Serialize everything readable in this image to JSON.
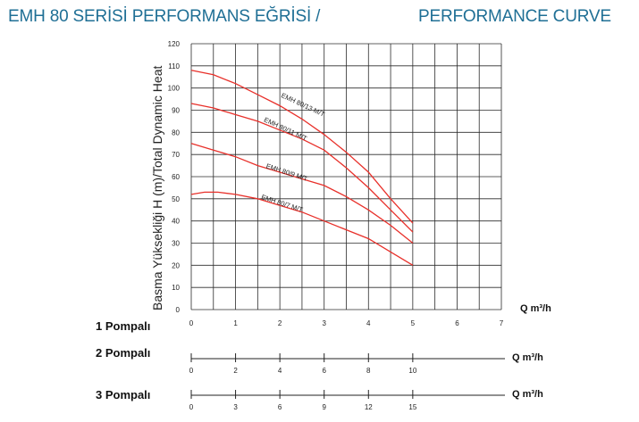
{
  "title_tr": "EMH 80 SERİSİ PERFORMANS EĞRİSİ /",
  "title_en": "PERFORMANCE CURVE",
  "colors": {
    "title": "#1f6f95",
    "curve": "#e8302a",
    "grid": "#2b2b2b"
  },
  "chart_data": {
    "type": "line",
    "title": "EMH 80 SERİSİ PERFORMANS EĞRİSİ / PERFORMANCE CURVE",
    "ylabel": "Basma Yüksekliği H (m)/Total Dynamic Heat",
    "xlabel": "Q m³/h",
    "xlim": [
      0,
      7
    ],
    "ylim": [
      0,
      120
    ],
    "grid": true,
    "yticks": [
      "0",
      "10",
      "20",
      "30",
      "40",
      "50",
      "60",
      "70",
      "80",
      "90",
      "100",
      "110",
      "120"
    ],
    "xticks": [
      "0",
      "1",
      "2",
      "3",
      "4",
      "5",
      "6",
      "7"
    ],
    "series": [
      {
        "name": "EMH 80/13 M/T",
        "x": [
          0,
          0.5,
          1,
          1.5,
          2,
          2.5,
          3,
          3.5,
          4,
          4.5,
          5
        ],
        "y": [
          108,
          106,
          102,
          97,
          92,
          86,
          79,
          71,
          62,
          50,
          39
        ]
      },
      {
        "name": "EMH 80/11 M/T",
        "x": [
          0,
          0.5,
          1,
          1.5,
          2,
          2.5,
          3,
          3.5,
          4,
          4.5,
          5
        ],
        "y": [
          93,
          91,
          88,
          85,
          81,
          77,
          72,
          64,
          55,
          45,
          35
        ]
      },
      {
        "name": "EMH 80/9 M/T",
        "x": [
          0,
          0.5,
          1,
          1.5,
          2,
          2.5,
          3,
          3.5,
          4,
          4.5,
          5
        ],
        "y": [
          75,
          72,
          69,
          65,
          62,
          59,
          56,
          51,
          45,
          38,
          30
        ]
      },
      {
        "name": "EMH 80/7 M/T",
        "x": [
          0,
          0.3,
          0.6,
          1,
          1.5,
          2,
          2.5,
          3,
          3.5,
          4,
          4.5,
          5
        ],
        "y": [
          52,
          53,
          53,
          52,
          50,
          47,
          44,
          40,
          36,
          32,
          26,
          20
        ]
      }
    ]
  },
  "pump_axes": [
    {
      "label": "1 Pompalı",
      "unit": "Q m³/h"
    },
    {
      "label": "2 Pompalı",
      "unit": "Q m³/h",
      "ticks": [
        "0",
        "2",
        "4",
        "6",
        "8",
        "10"
      ]
    },
    {
      "label": "3 Pompalı",
      "unit": "Q m³/h",
      "ticks": [
        "0",
        "3",
        "6",
        "9",
        "12",
        "15"
      ]
    }
  ]
}
